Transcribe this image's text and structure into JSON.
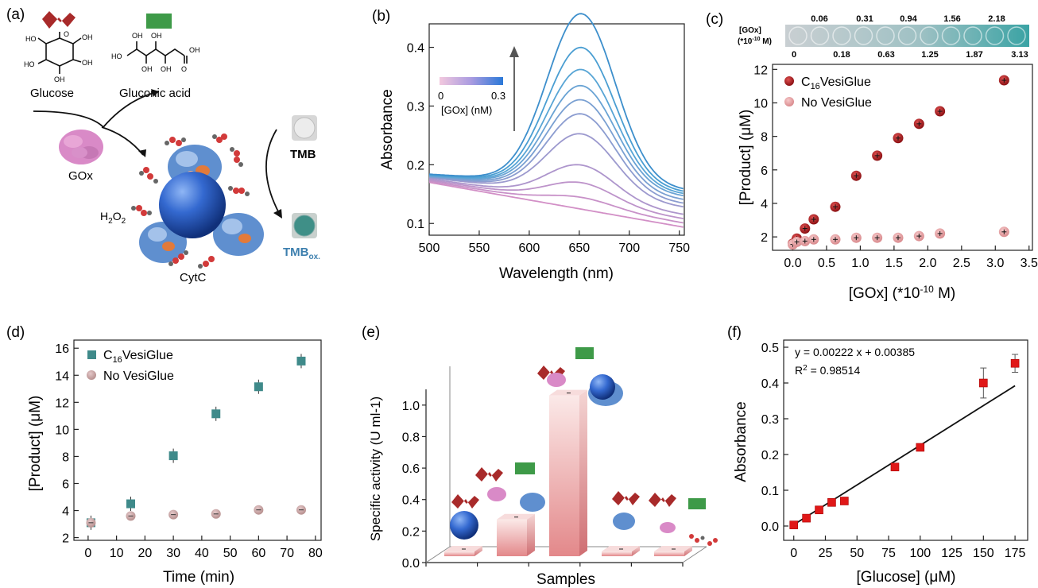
{
  "panels": {
    "a": "(a)",
    "b": "(b)",
    "c": "(c)",
    "d": "(d)",
    "e": "(e)",
    "f": "(f)"
  },
  "colors": {
    "dark_red": "#b01c1c",
    "pink": "#e8a6a8",
    "teal": "#3f8a8a",
    "mauve": "#c9a3a5",
    "red": "#e01818",
    "green": "#3e9a48",
    "blue": "#2f63c8"
  },
  "panel_a": {
    "glucose": "Glucose",
    "gluconic": "Gluconic acid",
    "gox": "GOx",
    "tmb": "TMB",
    "tmb_ox": "TMB",
    "tmb_ox_sub": "ox.",
    "h2o2": "H",
    "h2o2_a": "2",
    "h2o2_b": "O",
    "h2o2_c": "2",
    "cytc": "CytC",
    "oh": "OH",
    "ho": "HO",
    "o": "O"
  },
  "panel_b_text": {
    "legend_min": "0",
    "legend_max": "0.3",
    "legend_label": "[GOx] (nM)"
  },
  "panel_c_text": {
    "strip_label": "[GOx]",
    "strip_unit": "(*10",
    "strip_unit_exp": "-10",
    "strip_unit_end": " M)",
    "strip_top": [
      "0.06",
      "0.31",
      "0.94",
      "1.56",
      "2.18"
    ],
    "strip_bottom": [
      "0",
      "0.18",
      "0.63",
      "1.25",
      "1.87",
      "3.13"
    ],
    "legend1_a": "C",
    "legend1_sub": "16",
    "legend1_b": "VesiGlue",
    "legend2": "No VesiGlue",
    "xlabel_a": "[GOx] (*10",
    "xlabel_exp": "-10",
    "xlabel_b": " M)"
  },
  "panel_d_text": {
    "legend1_a": "C",
    "legend1_sub": "16",
    "legend1_b": "VesiGlue",
    "legend2": "No VesiGlue"
  },
  "panel_f_text": {
    "eq": "y = 0.00222 x + 0.00385",
    "r2_a": "R",
    "r2_exp": "2",
    "r2_b": " = 0.98514"
  },
  "chart_data": [
    {
      "id": "b",
      "type": "line",
      "xlabel": "Wavelength (nm)",
      "ylabel": "Absorbance",
      "xlim": [
        500,
        755
      ],
      "ylim": [
        0.08,
        0.44
      ],
      "xticks": [
        500,
        550,
        600,
        650,
        700,
        750
      ],
      "yticks": [
        0.1,
        0.2,
        0.3,
        0.4
      ],
      "series": [
        {
          "baseline": 0.17,
          "slope": -0.0003,
          "peak": 0.0,
          "color": "#d28fc6"
        },
        {
          "baseline": 0.172,
          "slope": -0.00028,
          "peak": 0.015,
          "color": "#c891c8"
        },
        {
          "baseline": 0.174,
          "slope": -0.00026,
          "peak": 0.035,
          "color": "#bd93ca"
        },
        {
          "baseline": 0.176,
          "slope": -0.00024,
          "peak": 0.06,
          "color": "#ad95cc"
        },
        {
          "baseline": 0.178,
          "slope": -0.0002,
          "peak": 0.105,
          "color": "#9c99ce"
        },
        {
          "baseline": 0.179,
          "slope": -0.00018,
          "peak": 0.135,
          "color": "#8b9cd0"
        },
        {
          "baseline": 0.18,
          "slope": -0.00016,
          "peak": 0.155,
          "color": "#7aa0d2"
        },
        {
          "baseline": 0.181,
          "slope": -0.00014,
          "peak": 0.175,
          "color": "#69a3d4"
        },
        {
          "baseline": 0.182,
          "slope": -0.00013,
          "peak": 0.2,
          "color": "#58a5d5"
        },
        {
          "baseline": 0.183,
          "slope": -0.00012,
          "peak": 0.235,
          "color": "#4a9ed2"
        },
        {
          "baseline": 0.184,
          "slope": -0.00011,
          "peak": 0.29,
          "color": "#3d8fcc"
        }
      ]
    },
    {
      "id": "c",
      "type": "scatter",
      "xlabel": "[GOx] (*10-10 M)",
      "ylabel": "[Product] (μM)",
      "xlim": [
        -0.3,
        3.55
      ],
      "ylim": [
        1.2,
        12.3
      ],
      "xticks": [
        0.0,
        0.5,
        1.0,
        1.5,
        2.0,
        2.5,
        3.0,
        3.5
      ],
      "yticks": [
        2,
        4,
        6,
        8,
        10,
        12
      ],
      "series": [
        {
          "name": "C16VesiGlue",
          "x": [
            0,
            0.06,
            0.18,
            0.31,
            0.63,
            0.94,
            1.25,
            1.56,
            1.87,
            2.18,
            3.13
          ],
          "y": [
            1.6,
            1.9,
            2.5,
            3.05,
            3.8,
            5.65,
            6.85,
            7.9,
            8.75,
            9.5,
            11.35
          ]
        },
        {
          "name": "No VesiGlue",
          "x": [
            0,
            0.06,
            0.18,
            0.31,
            0.63,
            0.94,
            1.25,
            1.56,
            1.87,
            2.18,
            3.13
          ],
          "y": [
            1.55,
            1.7,
            1.75,
            1.85,
            1.85,
            1.95,
            1.95,
            1.95,
            2.05,
            2.2,
            2.3
          ]
        }
      ]
    },
    {
      "id": "d",
      "type": "scatter",
      "xlabel": "Time (min)",
      "ylabel": "[Product] (μM)",
      "xlim": [
        -5,
        82
      ],
      "ylim": [
        1.8,
        16.6
      ],
      "xticks": [
        0,
        10,
        20,
        30,
        40,
        50,
        60,
        70,
        80
      ],
      "yticks": [
        2,
        4,
        6,
        8,
        10,
        12,
        14,
        16
      ],
      "series": [
        {
          "name": "C16VesiGlue",
          "x": [
            1,
            15,
            30,
            45,
            60,
            75
          ],
          "y": [
            3.1,
            4.5,
            8.05,
            11.15,
            13.15,
            15.05
          ]
        },
        {
          "name": "No VesiGlue",
          "x": [
            1,
            15,
            30,
            45,
            60,
            75
          ],
          "y": [
            3.1,
            3.6,
            3.7,
            3.75,
            4.05,
            4.05
          ]
        }
      ]
    },
    {
      "id": "e",
      "type": "bar",
      "xlabel": "Samples",
      "ylabel": "Specific activity (U ml-1)",
      "ylim": [
        0,
        1.1
      ],
      "yticks": [
        0.0,
        0.2,
        0.4,
        0.6,
        0.8,
        1.0
      ],
      "values": [
        0.02,
        0.24,
        1.05,
        0.03,
        0.02
      ]
    },
    {
      "id": "f",
      "type": "scatter",
      "xlabel": "[Glucose] (μM)",
      "ylabel": "Absorbance",
      "xlim": [
        -8,
        185
      ],
      "ylim": [
        -0.04,
        0.52
      ],
      "xticks": [
        0,
        25,
        50,
        75,
        100,
        125,
        150,
        175
      ],
      "yticks": [
        0.0,
        0.1,
        0.2,
        0.3,
        0.4,
        0.5
      ],
      "x": [
        0,
        10,
        20,
        30,
        40,
        80,
        100,
        150,
        175
      ],
      "y": [
        0.003,
        0.022,
        0.045,
        0.066,
        0.07,
        0.165,
        0.22,
        0.4,
        0.455
      ],
      "err": [
        0.004,
        0.004,
        0.004,
        0.006,
        0.01,
        0.01,
        0.01,
        0.042,
        0.025
      ],
      "fit": {
        "slope": 0.00222,
        "intercept": 0.00385
      }
    }
  ]
}
